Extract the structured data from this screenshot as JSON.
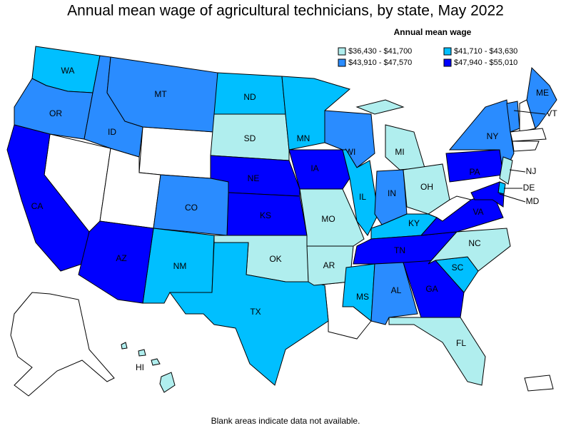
{
  "title": "Annual mean wage of agricultural technicians, by state, May 2022",
  "legend": {
    "title": "Annual mean wage",
    "items": [
      {
        "label": "$36,430 - $41,700",
        "color": "#b0eeee"
      },
      {
        "label": "$41,710 - $43,630",
        "color": "#00bfff"
      },
      {
        "label": "$43,910 - $47,570",
        "color": "#2a8cff"
      },
      {
        "label": "$47,940 - $55,010",
        "color": "#0000ff"
      }
    ]
  },
  "states": [
    {
      "label": "WA",
      "color": "#00bfff"
    },
    {
      "label": "OR",
      "color": "#2a8cff"
    },
    {
      "label": "CA",
      "color": "#0000ff"
    },
    {
      "label": "ID",
      "color": "#2a8cff"
    },
    {
      "label": "MT",
      "color": "#2a8cff"
    },
    {
      "label": "ND",
      "color": "#00bfff"
    },
    {
      "label": "SD",
      "color": "#b0eeee"
    },
    {
      "label": "NE",
      "color": "#0000ff"
    },
    {
      "label": "KS",
      "color": "#0000ff"
    },
    {
      "label": "CO",
      "color": "#2a8cff"
    },
    {
      "label": "NM",
      "color": "#00bfff"
    },
    {
      "label": "AZ",
      "color": "#0000ff"
    },
    {
      "label": "OK",
      "color": "#b0eeee"
    },
    {
      "label": "TX",
      "color": "#00bfff"
    },
    {
      "label": "MN",
      "color": "#00bfff"
    },
    {
      "label": "IA",
      "color": "#0000ff"
    },
    {
      "label": "MO",
      "color": "#b0eeee"
    },
    {
      "label": "AR",
      "color": "#b0eeee"
    },
    {
      "label": "WI",
      "color": "#2a8cff"
    },
    {
      "label": "IL",
      "color": "#00bfff"
    },
    {
      "label": "IN",
      "color": "#2a8cff"
    },
    {
      "label": "MI",
      "color": "#b0eeee"
    },
    {
      "label": "OH",
      "color": "#b0eeee"
    },
    {
      "label": "KY",
      "color": "#00bfff"
    },
    {
      "label": "TN",
      "color": "#0000ff"
    },
    {
      "label": "MS",
      "color": "#00bfff"
    },
    {
      "label": "AL",
      "color": "#2a8cff"
    },
    {
      "label": "GA",
      "color": "#0000ff"
    },
    {
      "label": "FL",
      "color": "#b0eeee"
    },
    {
      "label": "SC",
      "color": "#00bfff"
    },
    {
      "label": "NC",
      "color": "#b0eeee"
    },
    {
      "label": "VA",
      "color": "#0000ff"
    },
    {
      "label": "PA",
      "color": "#0000ff"
    },
    {
      "label": "NY",
      "color": "#2a8cff"
    },
    {
      "label": "NJ",
      "color": "#b0eeee"
    },
    {
      "label": "DE",
      "color": "#00bfff"
    },
    {
      "label": "MD",
      "color": "#0000ff"
    },
    {
      "label": "VT",
      "color": "#2a8cff"
    },
    {
      "label": "ME",
      "color": "#2a8cff"
    },
    {
      "label": "HI",
      "color": "#b0eeee"
    }
  ],
  "footnote": "Blank areas indicate data not available."
}
